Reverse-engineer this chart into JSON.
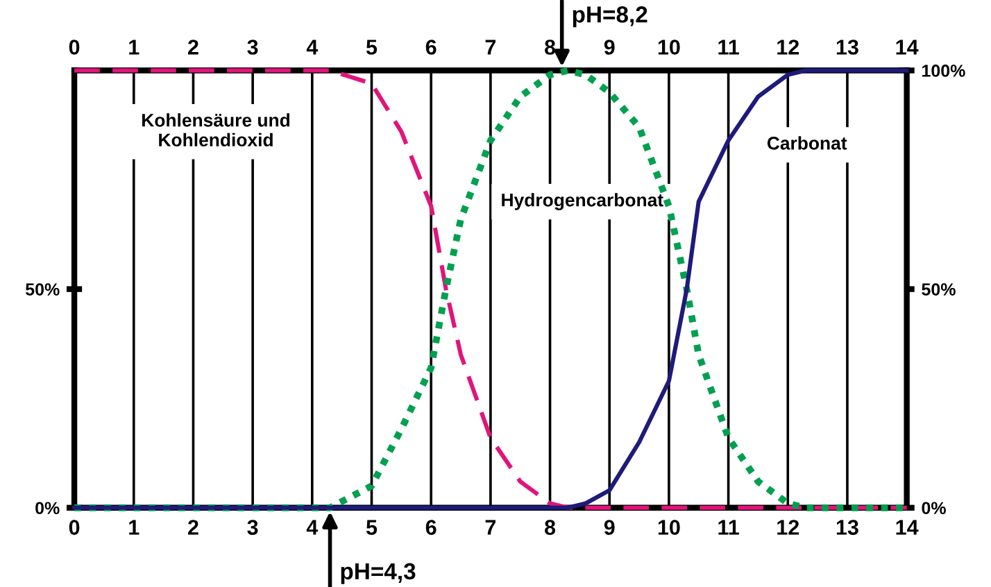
{
  "chart_data": {
    "type": "line",
    "x": [
      0,
      4.3,
      5,
      5.5,
      6,
      6.25,
      6.5,
      7,
      7.5,
      8,
      8.3,
      8.6,
      9,
      9.5,
      10,
      10.3,
      10.5,
      11,
      11.5,
      12,
      12.3,
      14
    ],
    "series": [
      {
        "name": "Kohlensäure und Kohlendioxid",
        "color": "#e0157a",
        "line_style": "dashed",
        "values": [
          100,
          100,
          97,
          86,
          69,
          50,
          35,
          16,
          6,
          1,
          0,
          0,
          0,
          0,
          0,
          0,
          0,
          0,
          0,
          0,
          0,
          0
        ]
      },
      {
        "name": "Hydrogencarbonat",
        "color": "#00a050",
        "line_style": "dotted",
        "values": [
          0,
          0,
          5,
          18,
          32,
          50,
          66,
          84,
          94,
          99,
          100,
          99,
          95,
          87,
          69,
          50,
          35,
          16,
          6,
          1,
          0,
          0
        ]
      },
      {
        "name": "Carbonat",
        "color": "#1e1b7a",
        "line_style": "solid",
        "values": [
          0,
          0,
          0,
          0,
          0,
          0,
          0,
          0,
          0,
          0,
          0,
          1,
          4,
          15,
          29,
          50,
          70,
          84,
          94,
          99,
          100,
          100
        ]
      }
    ],
    "xlim": [
      0,
      14
    ],
    "xticks": [
      0,
      1,
      2,
      3,
      4,
      5,
      6,
      7,
      8,
      9,
      10,
      11,
      12,
      13,
      14
    ],
    "x2lim": [
      0,
      14
    ],
    "x2ticks": [
      0,
      1,
      2,
      3,
      4,
      5,
      6,
      7,
      8,
      9,
      10,
      11,
      12,
      13,
      14
    ],
    "ylim": [
      0,
      100
    ],
    "yticks": [
      {
        "value": 0,
        "label": "0%"
      },
      {
        "value": 50,
        "label": "50%"
      }
    ],
    "y2lim": [
      0,
      100
    ],
    "y2ticks": [
      {
        "value": 0,
        "label": "0%"
      },
      {
        "value": 50,
        "label": "50%"
      },
      {
        "value": 100,
        "label": "100%"
      }
    ],
    "grid": "x",
    "legend": false,
    "marker": "none",
    "annotations": [
      {
        "text": "pH=8,2",
        "x": 8.2,
        "y": 100
      },
      {
        "text": "pH=4,3",
        "x": 4.3,
        "y": 0
      }
    ]
  }
}
